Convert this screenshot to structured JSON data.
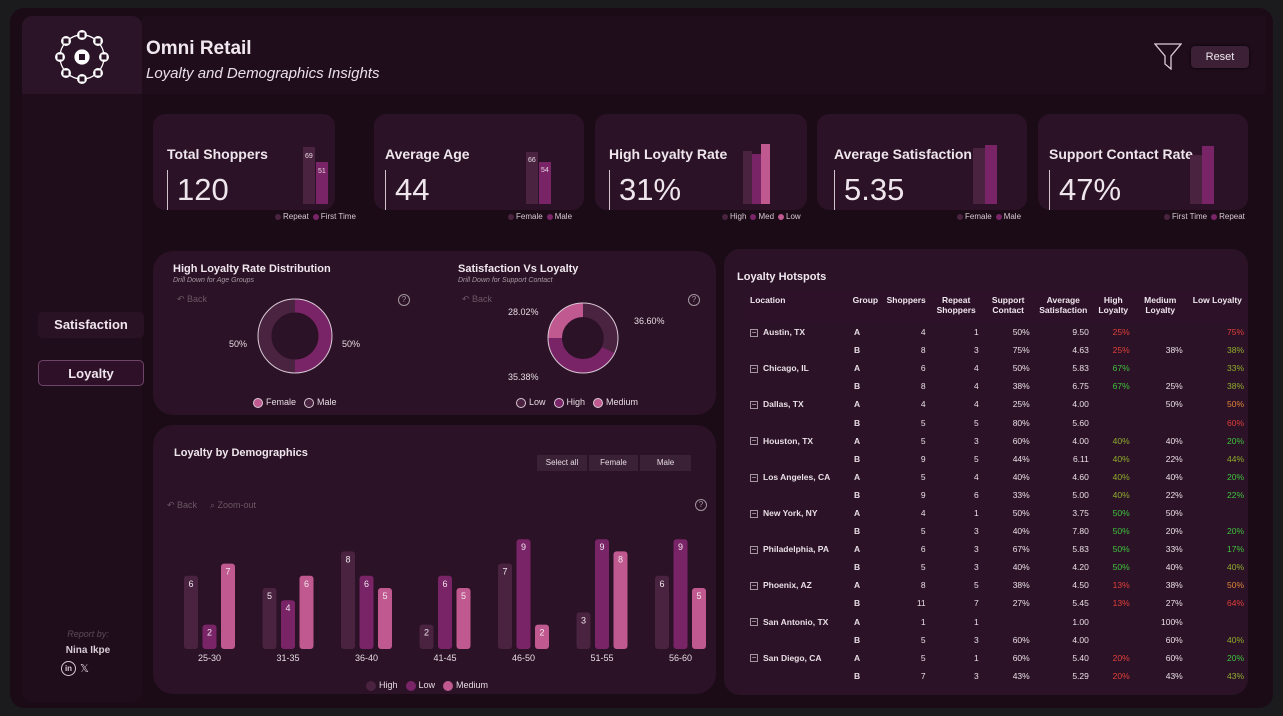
{
  "header": {
    "title": "Omni Retail",
    "subtitle": "Loyalty and Demographics Insights",
    "reset_label": "Reset"
  },
  "sidebar": {
    "nav": [
      {
        "label": "Satisfaction"
      },
      {
        "label": "Loyalty",
        "active": true
      }
    ],
    "report_by": "Report by:",
    "author": "Nina Ikpe"
  },
  "kpis": [
    {
      "title": "Total Shoppers",
      "value": "120",
      "bars": [
        {
          "label": "Repeat",
          "value": 69,
          "text": "69"
        },
        {
          "label": "First Time",
          "value": 51,
          "text": "51"
        }
      ]
    },
    {
      "title": "Average Age",
      "value": "44",
      "bars": [
        {
          "label": "Female",
          "value": 66,
          "text": "66"
        },
        {
          "label": "Male",
          "value": 54,
          "text": "54"
        }
      ]
    },
    {
      "title": "High Loyalty Rate",
      "value": "31%",
      "bars": [
        {
          "label": "High",
          "value": 0.85
        },
        {
          "label": "Med",
          "value": 0.8
        },
        {
          "label": "Low",
          "value": 1.0
        }
      ]
    },
    {
      "title": "Average Satisfaction",
      "value": "5.35",
      "bars": [
        {
          "label": "Female",
          "value": 0.95
        },
        {
          "label": "Male",
          "value": 1.0
        }
      ]
    },
    {
      "title": "Support Contact Rate",
      "value": "47%",
      "bars": [
        {
          "label": "First Time",
          "value": 0.85
        },
        {
          "label": "Repeat",
          "value": 1.0
        }
      ]
    }
  ],
  "donut1": {
    "title": "High Loyalty Rate Distribution",
    "subtitle": "Drill Down for Age Groups",
    "back": "Back",
    "help": "?",
    "labels": [
      "50%",
      "50%"
    ],
    "legend": [
      "Female",
      "Male"
    ]
  },
  "donut2": {
    "title": "Satisfaction Vs Loyalty",
    "subtitle": "Drill Down for Support Contact",
    "back": "Back",
    "help": "?",
    "labels": [
      "28.02%",
      "36.60%",
      "35.38%"
    ],
    "legend": [
      "Low",
      "High",
      "Medium"
    ]
  },
  "demographics": {
    "title": "Loyalty by Demographics",
    "segments": [
      "Select all",
      "Female",
      "Male"
    ],
    "back": "Back",
    "zoom": "Zoom-out",
    "help": "?",
    "legend": [
      "High",
      "Low",
      "Medium"
    ]
  },
  "chart_data": {
    "type": "bar",
    "title": "Loyalty by Demographics",
    "categories": [
      "25-30",
      "31-35",
      "36-40",
      "41-45",
      "46-50",
      "51-55",
      "56-60"
    ],
    "series": [
      {
        "name": "High",
        "values": [
          6,
          5,
          8,
          2,
          7,
          3,
          6
        ]
      },
      {
        "name": "Low",
        "values": [
          2,
          4,
          6,
          6,
          9,
          9,
          9
        ]
      },
      {
        "name": "Medium",
        "values": [
          7,
          6,
          5,
          5,
          2,
          8,
          5
        ]
      }
    ],
    "colors": {
      "High": "#4a2340",
      "Low": "#7a2468",
      "Medium": "#c0598f"
    },
    "ylim": [
      0,
      10
    ]
  },
  "hotspots": {
    "title": "Loyalty Hotspots",
    "columns": [
      "Location",
      "Group",
      "Shoppers",
      "Repeat Shoppers",
      "Support Contact",
      "Average Satisfaction",
      "High Loyalty",
      "Medium Loyalty",
      "Low Loyalty"
    ],
    "rows": [
      {
        "loc": "Austin, TX",
        "g": "A",
        "s": "4",
        "r": "1",
        "sc": "50%",
        "as": "9.50",
        "h": "25%",
        "hc": "red",
        "m": "",
        "l": "75%",
        "lc": "red"
      },
      {
        "loc": "",
        "g": "B",
        "s": "8",
        "r": "3",
        "sc": "75%",
        "as": "4.63",
        "h": "25%",
        "hc": "red",
        "m": "38%",
        "l": "38%",
        "lc": "olive"
      },
      {
        "loc": "Chicago, IL",
        "g": "A",
        "s": "6",
        "r": "4",
        "sc": "50%",
        "as": "5.83",
        "h": "67%",
        "hc": "green",
        "m": "",
        "l": "33%",
        "lc": "olive"
      },
      {
        "loc": "",
        "g": "B",
        "s": "8",
        "r": "4",
        "sc": "38%",
        "as": "6.75",
        "h": "67%",
        "hc": "green",
        "m": "25%",
        "l": "38%",
        "lc": "olive"
      },
      {
        "loc": "Dallas, TX",
        "g": "A",
        "s": "4",
        "r": "4",
        "sc": "25%",
        "as": "4.00",
        "h": "",
        "hc": "",
        "m": "50%",
        "l": "50%",
        "lc": "orange"
      },
      {
        "loc": "",
        "g": "B",
        "s": "5",
        "r": "5",
        "sc": "80%",
        "as": "5.60",
        "h": "",
        "hc": "",
        "m": "",
        "l": "60%",
        "lc": "red"
      },
      {
        "loc": "Houston, TX",
        "g": "A",
        "s": "5",
        "r": "3",
        "sc": "60%",
        "as": "4.00",
        "h": "40%",
        "hc": "olive",
        "m": "40%",
        "l": "20%",
        "lc": "green"
      },
      {
        "loc": "",
        "g": "B",
        "s": "9",
        "r": "5",
        "sc": "44%",
        "as": "6.11",
        "h": "40%",
        "hc": "olive",
        "m": "22%",
        "l": "44%",
        "lc": "olive"
      },
      {
        "loc": "Los Angeles, CA",
        "g": "A",
        "s": "5",
        "r": "4",
        "sc": "40%",
        "as": "4.60",
        "h": "40%",
        "hc": "olive",
        "m": "40%",
        "l": "20%",
        "lc": "green"
      },
      {
        "loc": "",
        "g": "B",
        "s": "9",
        "r": "6",
        "sc": "33%",
        "as": "5.00",
        "h": "40%",
        "hc": "olive",
        "m": "22%",
        "l": "22%",
        "lc": "green"
      },
      {
        "loc": "New York, NY",
        "g": "A",
        "s": "4",
        "r": "1",
        "sc": "50%",
        "as": "3.75",
        "h": "50%",
        "hc": "green",
        "m": "50%",
        "l": "",
        "lc": ""
      },
      {
        "loc": "",
        "g": "B",
        "s": "5",
        "r": "3",
        "sc": "40%",
        "as": "7.80",
        "h": "50%",
        "hc": "green",
        "m": "20%",
        "l": "20%",
        "lc": "green"
      },
      {
        "loc": "Philadelphia, PA",
        "g": "A",
        "s": "6",
        "r": "3",
        "sc": "67%",
        "as": "5.83",
        "h": "50%",
        "hc": "green",
        "m": "33%",
        "l": "17%",
        "lc": "green"
      },
      {
        "loc": "",
        "g": "B",
        "s": "5",
        "r": "3",
        "sc": "40%",
        "as": "4.20",
        "h": "50%",
        "hc": "green",
        "m": "40%",
        "l": "40%",
        "lc": "olive"
      },
      {
        "loc": "Phoenix, AZ",
        "g": "A",
        "s": "8",
        "r": "5",
        "sc": "38%",
        "as": "4.50",
        "h": "13%",
        "hc": "red",
        "m": "38%",
        "l": "50%",
        "lc": "orange"
      },
      {
        "loc": "",
        "g": "B",
        "s": "11",
        "r": "7",
        "sc": "27%",
        "as": "5.45",
        "h": "13%",
        "hc": "red",
        "m": "27%",
        "l": "64%",
        "lc": "red"
      },
      {
        "loc": "San Antonio, TX",
        "g": "A",
        "s": "1",
        "r": "1",
        "sc": "",
        "as": "1.00",
        "h": "",
        "hc": "",
        "m": "100%",
        "l": "",
        "lc": ""
      },
      {
        "loc": "",
        "g": "B",
        "s": "5",
        "r": "3",
        "sc": "60%",
        "as": "4.00",
        "h": "",
        "hc": "",
        "m": "60%",
        "l": "40%",
        "lc": "olive"
      },
      {
        "loc": "San Diego, CA",
        "g": "A",
        "s": "5",
        "r": "1",
        "sc": "60%",
        "as": "5.40",
        "h": "20%",
        "hc": "red",
        "m": "60%",
        "l": "20%",
        "lc": "green"
      },
      {
        "loc": "",
        "g": "B",
        "s": "7",
        "r": "3",
        "sc": "43%",
        "as": "5.29",
        "h": "20%",
        "hc": "red",
        "m": "43%",
        "l": "43%",
        "lc": "olive"
      }
    ]
  },
  "colors": {
    "background": "#1a0b16",
    "card": "#2b1226",
    "accent": "#c0598f",
    "green": "#3fc43f",
    "red": "#e0403a",
    "olive": "#8fae2e",
    "orange": "#e0873a"
  }
}
